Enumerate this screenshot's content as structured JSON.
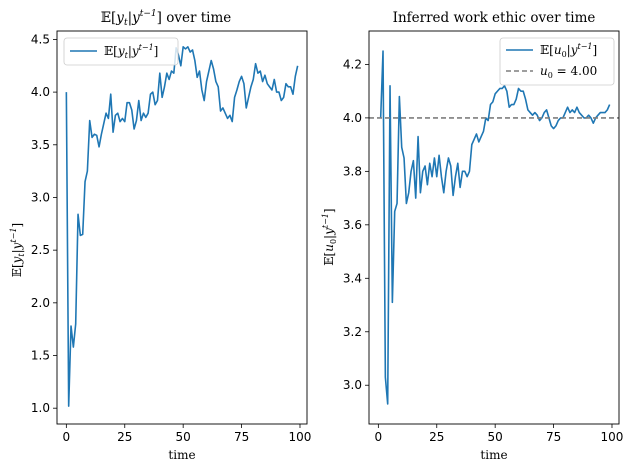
{
  "chart_data": [
    {
      "type": "line",
      "title": "𝔼[y_t|y^{t−1}] over time",
      "xlabel": "time",
      "ylabel": "𝔼[y_t|y^{t−1}]",
      "xlim": [
        -4,
        103
      ],
      "ylim": [
        0.85,
        4.58
      ],
      "xticks": [
        0,
        25,
        50,
        75,
        100
      ],
      "yticks": [
        1.0,
        1.5,
        2.0,
        2.5,
        3.0,
        3.5,
        4.0,
        4.5
      ],
      "ytick_labels": [
        "1.0",
        "1.5",
        "2.0",
        "2.5",
        "3.0",
        "3.5",
        "4.0",
        "4.5"
      ],
      "legend": {
        "position": "upper left",
        "entries": [
          "𝔼[y_t|y^{t−1}]"
        ]
      },
      "series": [
        {
          "name": "𝔼[y_t|y^{t−1}]",
          "color": "#1f77b4",
          "x": [
            0,
            1,
            2,
            3,
            4,
            5,
            6,
            7,
            8,
            9,
            10,
            11,
            12,
            13,
            14,
            15,
            16,
            17,
            18,
            19,
            20,
            21,
            22,
            23,
            24,
            25,
            26,
            27,
            28,
            29,
            30,
            31,
            32,
            33,
            34,
            35,
            36,
            37,
            38,
            39,
            40,
            41,
            42,
            43,
            44,
            45,
            46,
            47,
            48,
            49,
            50,
            51,
            52,
            53,
            54,
            55,
            56,
            57,
            58,
            59,
            60,
            61,
            62,
            63,
            64,
            65,
            66,
            67,
            68,
            69,
            70,
            71,
            72,
            73,
            74,
            75,
            76,
            77,
            78,
            79,
            80,
            81,
            82,
            83,
            84,
            85,
            86,
            87,
            88,
            89,
            90,
            91,
            92,
            93,
            94,
            95,
            96,
            97,
            98,
            99
          ],
          "y": [
            4.0,
            1.02,
            1.78,
            1.58,
            1.8,
            2.84,
            2.64,
            2.65,
            3.15,
            3.25,
            3.73,
            3.57,
            3.6,
            3.59,
            3.48,
            3.6,
            3.7,
            3.8,
            3.75,
            3.98,
            3.62,
            3.78,
            3.8,
            3.72,
            3.75,
            3.72,
            3.9,
            3.9,
            3.83,
            3.65,
            3.73,
            3.92,
            3.73,
            3.8,
            3.76,
            3.8,
            3.98,
            4.0,
            3.88,
            3.92,
            4.18,
            3.95,
            4.05,
            4.18,
            4.12,
            4.2,
            4.18,
            4.42,
            4.35,
            4.25,
            4.43,
            4.41,
            4.43,
            4.38,
            4.4,
            4.3,
            4.14,
            4.2,
            4.02,
            3.92,
            4.1,
            4.2,
            4.3,
            4.22,
            4.1,
            4.05,
            3.82,
            3.85,
            3.8,
            3.75,
            3.78,
            3.72,
            3.95,
            4.02,
            4.1,
            4.15,
            4.08,
            3.85,
            3.95,
            4.05,
            4.12,
            4.27,
            4.18,
            4.2,
            4.1,
            4.16,
            4.08,
            4.05,
            4.02,
            4.12,
            4.0,
            4.0,
            3.92,
            3.95,
            4.08,
            4.05,
            4.05,
            3.98,
            4.15,
            4.25
          ]
        }
      ]
    },
    {
      "type": "line",
      "title": "Inferred work ethic over time",
      "xlabel": "time",
      "ylabel": "𝔼[u_0|y^{t−1}]",
      "xlim": [
        -4,
        103
      ],
      "ylim": [
        2.855,
        4.325
      ],
      "xticks": [
        0,
        25,
        50,
        75,
        100
      ],
      "yticks": [
        3.0,
        3.2,
        3.4,
        3.6,
        3.8,
        4.0,
        4.2
      ],
      "ytick_labels": [
        "3.0",
        "3.2",
        "3.4",
        "3.6",
        "3.8",
        "4.0",
        "4.2"
      ],
      "legend": {
        "position": "upper right",
        "entries": [
          "𝔼[u_0|y^{t−1}]",
          "u_0 = 4.00"
        ]
      },
      "series": [
        {
          "name": "𝔼[u_0|y^{t−1}]",
          "color": "#1f77b4",
          "x": [
            1,
            2,
            3,
            4,
            5,
            6,
            7,
            8,
            9,
            10,
            11,
            12,
            13,
            14,
            15,
            16,
            17,
            18,
            19,
            20,
            21,
            22,
            23,
            24,
            25,
            26,
            27,
            28,
            29,
            30,
            31,
            32,
            33,
            34,
            35,
            36,
            37,
            38,
            39,
            40,
            41,
            42,
            43,
            44,
            45,
            46,
            47,
            48,
            49,
            50,
            51,
            52,
            53,
            54,
            55,
            56,
            57,
            58,
            59,
            60,
            61,
            62,
            63,
            64,
            65,
            66,
            67,
            68,
            69,
            70,
            71,
            72,
            73,
            74,
            75,
            76,
            77,
            78,
            79,
            80,
            81,
            82,
            83,
            84,
            85,
            86,
            87,
            88,
            89,
            90,
            91,
            92,
            93,
            94,
            95,
            96,
            97,
            98,
            99
          ],
          "y": [
            4.0,
            4.25,
            3.03,
            2.93,
            4.12,
            3.31,
            3.65,
            3.68,
            4.08,
            3.89,
            3.85,
            3.68,
            3.72,
            3.8,
            3.84,
            3.7,
            3.93,
            3.72,
            3.8,
            3.82,
            3.75,
            3.83,
            3.78,
            3.85,
            3.78,
            3.86,
            3.78,
            3.72,
            3.8,
            3.85,
            3.82,
            3.71,
            3.78,
            3.83,
            3.74,
            3.8,
            3.8,
            3.78,
            3.8,
            3.9,
            3.92,
            3.94,
            3.91,
            3.93,
            3.95,
            4.0,
            3.99,
            4.05,
            4.06,
            4.09,
            4.1,
            4.11,
            4.11,
            4.12,
            4.1,
            4.04,
            4.05,
            4.05,
            4.07,
            4.11,
            4.1,
            4.1,
            4.07,
            4.03,
            4.02,
            4.01,
            4.02,
            4.01,
            3.99,
            4.0,
            4.02,
            4.03,
            4.0,
            3.97,
            3.96,
            3.97,
            3.99,
            4.0,
            4.0,
            4.02,
            4.04,
            4.02,
            4.03,
            4.02,
            4.04,
            4.02,
            4.01,
            4.0,
            4.0,
            4.01,
            4.0,
            3.98,
            4.0,
            4.01,
            4.02,
            4.02,
            4.02,
            4.03,
            4.05
          ]
        },
        {
          "name": "u_0 = 4.00",
          "color": "#7f7f7f",
          "style": "dashed",
          "hline": 4.0
        }
      ]
    }
  ]
}
